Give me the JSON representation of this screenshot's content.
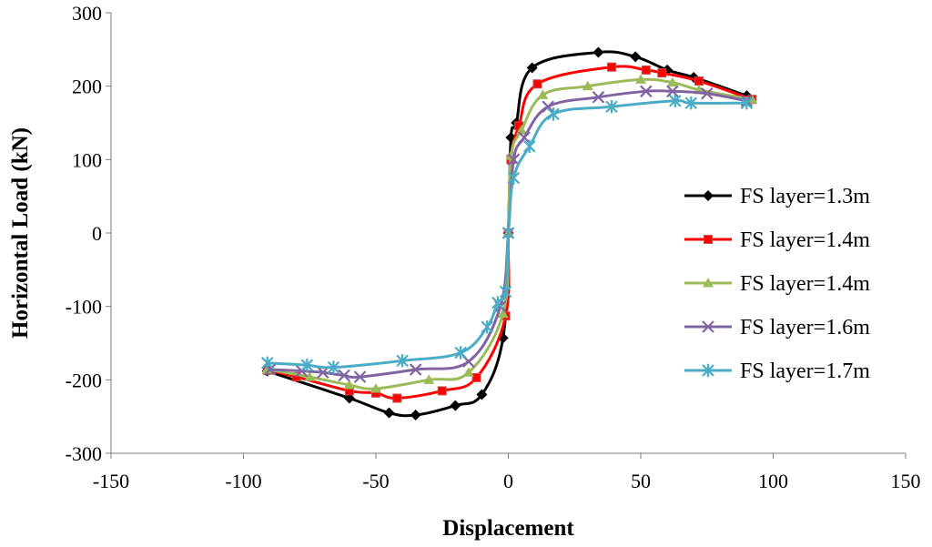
{
  "chart_data": {
    "type": "scatter",
    "title": "",
    "xlabel": "Displacement",
    "ylabel": "Horizontal Load (kN)",
    "xlim": [
      -150,
      150
    ],
    "ylim": [
      -300,
      300
    ],
    "xticks": [
      -150,
      -100,
      -50,
      0,
      50,
      100,
      150
    ],
    "yticks": [
      -300,
      -200,
      -100,
      0,
      100,
      200,
      300
    ],
    "xtick_labels": [
      "-150",
      "-100",
      "-50",
      "0",
      "50",
      "100",
      "150"
    ],
    "ytick_labels": [
      "-300",
      "-200",
      "-100",
      "0",
      "100",
      "200",
      "300"
    ],
    "grid": false,
    "legend_position": "right",
    "series": [
      {
        "name": "FS layer=1.3m",
        "color": "#000000",
        "marker": "diamond",
        "x": [
          -91,
          -60,
          -45,
          -35,
          -20,
          -10,
          -2,
          0,
          1,
          3,
          9,
          34,
          48,
          60,
          70,
          90
        ],
        "y": [
          -188,
          -225,
          -245,
          -248,
          -235,
          -220,
          -143,
          0,
          130,
          150,
          225,
          246,
          240,
          222,
          212,
          187
        ]
      },
      {
        "name": "FS layer=1.4m",
        "color": "#ff0000",
        "marker": "square",
        "x": [
          -91,
          -80,
          -60,
          -50,
          -42,
          -25,
          -12,
          -1,
          0,
          1,
          4,
          11,
          39,
          52,
          58,
          72,
          92
        ],
        "y": [
          -187,
          -196,
          -215,
          -218,
          -225,
          -215,
          -197,
          -113,
          0,
          100,
          146,
          203,
          226,
          222,
          218,
          207,
          182
        ]
      },
      {
        "name": "FS layer=1.4m",
        "color": "#9bbb59",
        "marker": "triangle",
        "x": [
          -91,
          -75,
          -60,
          -50,
          -30,
          -15,
          -2,
          0,
          1,
          5,
          13,
          30,
          50,
          62,
          72,
          92
        ],
        "y": [
          -186,
          -196,
          -207,
          -212,
          -200,
          -190,
          -110,
          0,
          105,
          140,
          188,
          200,
          209,
          205,
          195,
          182
        ]
      },
      {
        "name": "FS layer=1.6m",
        "color": "#8064a2",
        "marker": "x",
        "x": [
          -90,
          -78,
          -70,
          -62,
          -56,
          -35,
          -15,
          -3,
          0,
          2,
          6,
          15,
          34,
          52,
          62,
          75,
          90
        ],
        "y": [
          -186,
          -188,
          -190,
          -194,
          -196,
          -186,
          -175,
          -100,
          0,
          100,
          130,
          172,
          185,
          193,
          193,
          190,
          180
        ]
      },
      {
        "name": "FS layer=1.7m",
        "color": "#4bacc6",
        "marker": "star",
        "x": [
          -91,
          -76,
          -66,
          -40,
          -18,
          -8,
          -4,
          -1,
          0,
          2,
          8,
          17,
          39,
          63,
          69,
          90
        ],
        "y": [
          -177,
          -180,
          -183,
          -174,
          -163,
          -128,
          -95,
          -80,
          0,
          75,
          118,
          162,
          172,
          180,
          177,
          177
        ]
      }
    ]
  }
}
